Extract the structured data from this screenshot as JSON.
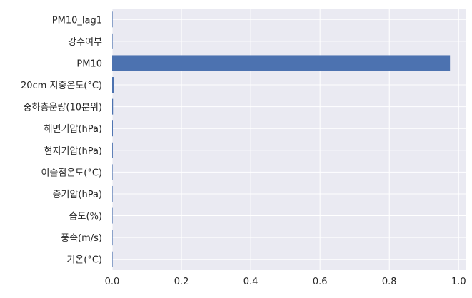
{
  "chart_data": {
    "type": "bar",
    "orientation": "horizontal",
    "categories": [
      "PM10_lag1",
      "강수여부",
      "PM10",
      "20cm 지중온도(°C)",
      "중하층운량(10분위)",
      "해면기압(hPa)",
      "현지기압(hPa)",
      "이슬점온도(°C)",
      "증기압(hPa)",
      "습도(%)",
      "풍속(m/s)",
      "기온(°C)"
    ],
    "values": [
      0.0005,
      0.0002,
      0.975,
      0.0045,
      0.0025,
      0.002,
      0.0018,
      0.0008,
      0.0006,
      0.001,
      0.0004,
      0.0003
    ],
    "xlim": [
      0,
      1.02
    ],
    "xticks": [
      "0.0",
      "0.2",
      "0.4",
      "0.6",
      "0.8",
      "1.0"
    ],
    "xtick_values": [
      0,
      0.2,
      0.4,
      0.6,
      0.8,
      1.0
    ],
    "title": "",
    "xlabel": "",
    "ylabel": "",
    "grid": true,
    "colors": {
      "bar": "#4c72b0",
      "plot_background": "#eaeaf2",
      "grid": "#ffffff",
      "text": "#262626"
    }
  }
}
